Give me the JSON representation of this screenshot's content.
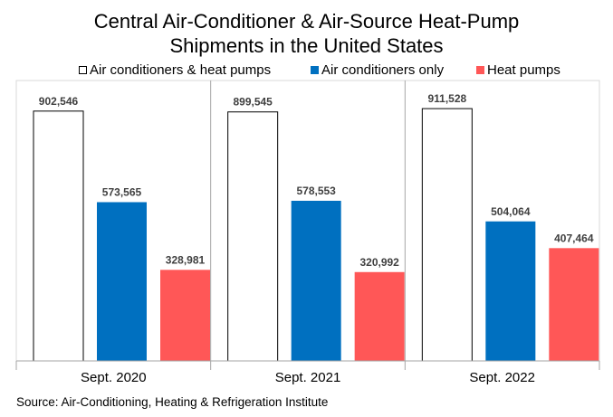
{
  "chart_data": {
    "type": "bar",
    "title_line1": "Central Air-Conditioner & Air-Source Heat-Pump",
    "title_line2": "Shipments in the United States",
    "categories": [
      "Sept. 2020",
      "Sept. 2021",
      "Sept. 2022"
    ],
    "series": [
      {
        "name": "Air conditioners & heat pumps",
        "color": "#ffffff",
        "values": [
          902546,
          899545,
          911528
        ],
        "labels": [
          "902,546",
          "899,545",
          "911,528"
        ]
      },
      {
        "name": "Air conditioners only",
        "color": "#0070c0",
        "values": [
          573565,
          578553,
          504064
        ],
        "labels": [
          "573,565",
          "578,553",
          "504,064"
        ]
      },
      {
        "name": "Heat pumps",
        "color": "#ff5757",
        "values": [
          328981,
          320992,
          407464
        ],
        "labels": [
          "328,981",
          "320,992",
          "407,464"
        ]
      }
    ],
    "ylim": [
      0,
      1000000
    ],
    "grid": false,
    "legend_position": "top",
    "source": "Source: Air-Conditioning, Heating & Refrigeration Institute"
  }
}
